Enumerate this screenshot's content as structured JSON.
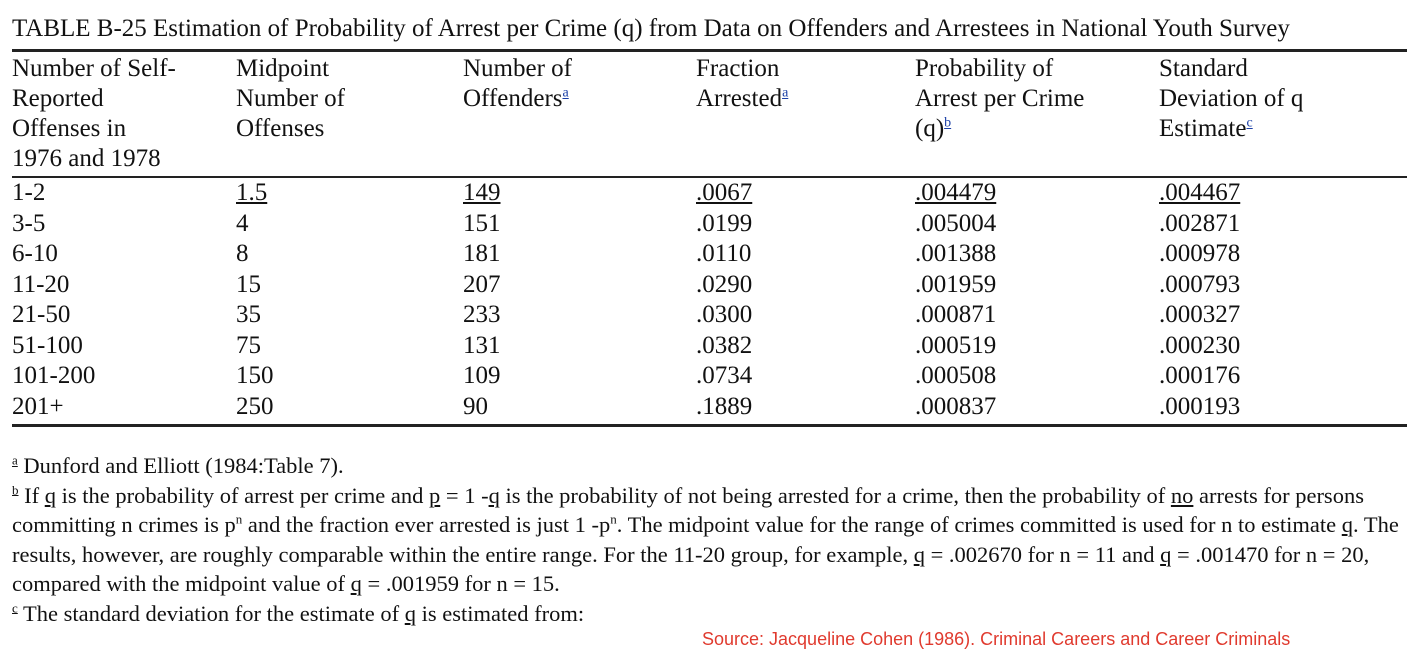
{
  "title": "TABLE B-25 Estimation of Probability of Arrest per Crime (q) from Data on Offenders and Arrestees in National Youth Survey",
  "headers": [
    {
      "lines": [
        "Number of Self-",
        "Reported",
        "Offenses in",
        "1976 and 1978"
      ],
      "sup": ""
    },
    {
      "lines": [
        "Midpoint",
        "Number of",
        "Offenses"
      ],
      "sup": ""
    },
    {
      "lines": [
        "Number of",
        "Offenders"
      ],
      "sup": "a"
    },
    {
      "lines": [
        "Fraction",
        "Arrested"
      ],
      "sup": "a"
    },
    {
      "lines": [
        "Probability of",
        "Arrest per Crime",
        "(q)"
      ],
      "sup": "b"
    },
    {
      "lines": [
        "Standard",
        "Deviation of q",
        "Estimate"
      ],
      "sup": "c"
    }
  ],
  "rows": [
    [
      "1-2",
      "1.5",
      "149",
      ".0067",
      ".004479",
      ".004467"
    ],
    [
      "3-5",
      "4",
      "151",
      ".0199",
      ".005004",
      ".002871"
    ],
    [
      "6-10",
      "8",
      "181",
      ".0110",
      ".001388",
      ".000978"
    ],
    [
      "11-20",
      "15",
      "207",
      ".0290",
      ".001959",
      ".000793"
    ],
    [
      "21-50",
      "35",
      "233",
      ".0300",
      ".000871",
      ".000327"
    ],
    [
      "51-100",
      "75",
      "131",
      ".0382",
      ".000519",
      ".000230"
    ],
    [
      "101-200",
      "150",
      "109",
      ".0734",
      ".000508",
      ".000176"
    ],
    [
      "201+",
      "250",
      "90",
      ".1889",
      ".000837",
      ".000193"
    ]
  ],
  "notes": {
    "a": {
      "sup": "a",
      "text": " Dunford and Elliott (1984:Table 7)."
    },
    "b": {
      "sup": "b",
      "p1": " If ",
      "q1": "q",
      "p2": " is the probability of arrest per crime and ",
      "pe": "p",
      "p3": " = 1 -",
      "q2": "q",
      "p4": " is the probability of not being arrested for a crime, then the probability of ",
      "no": "no",
      "p5": " arrests for persons committing n crimes is p",
      "n1": "n",
      "p6": " and the fraction ever arrested is just 1 -p",
      "n2": "n",
      "p7": ". The midpoint value for the range of crimes committed is used for n to estimate ",
      "q3": "q",
      "p8": ". The results, however, are roughly comparable within the entire range. For the 11-20 group, for example, ",
      "q4": "q",
      "p9": " = .002670 for n = 11 and ",
      "q5": "q",
      "p10": " = .001470 for n = 20, compared with the midpoint value of ",
      "q6": "q",
      "p11": " = .001959 for n = 15."
    },
    "c": {
      "sup": "c",
      "p1": " The standard deviation for the estimate of ",
      "q": "q",
      "p2": " is estimated from:"
    }
  },
  "source": "Source: Jacqueline Cohen (1986). Criminal Careers and Career Criminals"
}
